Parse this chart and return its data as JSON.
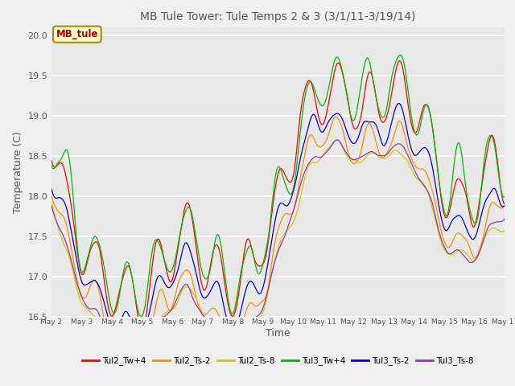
{
  "title": "MB Tule Tower: Tule Temps 2 & 3 (3/1/11-3/19/14)",
  "xlabel": "Time",
  "ylabel": "Temperature (C)",
  "ylim": [
    16.5,
    20.1
  ],
  "background_color": "#f0f0f0",
  "plot_bg_color": "#e8e8e8",
  "grid_color": "#ffffff",
  "annotation_label": "MB_tule",
  "annotation_color": "#aa0000",
  "annotation_bg": "#ffffcc",
  "annotation_border": "#aa8800",
  "series_order": [
    "Tul2_Tw+4",
    "Tul2_Ts-2",
    "Tul2_Ts-8",
    "Tul3_Tw+4",
    "Tul3_Ts-2",
    "Tul3_Ts-8"
  ],
  "series_colors": {
    "Tul2_Tw+4": "#ff0000",
    "Tul2_Ts-2": "#ff8c00",
    "Tul2_Ts-8": "#cccc00",
    "Tul3_Tw+4": "#00bb00",
    "Tul3_Ts-2": "#0000dd",
    "Tul3_Ts-8": "#9933bb"
  },
  "x_tick_labels": [
    "May 2",
    "May 3",
    "May 4",
    "May 5",
    "May 6",
    "May 7",
    "May 8",
    "May 9",
    "May 10",
    "May 11",
    "May 12",
    "May 13",
    "May 14",
    "May 15",
    "May 16",
    "May 17"
  ],
  "n_days": 16,
  "pts_per_day": 24,
  "base_trend": [
    18.7,
    17.5,
    16.9,
    16.75,
    17.4,
    17.3,
    16.85,
    17.4,
    18.55,
    19.3,
    19.2,
    19.25,
    19.1,
    18.15,
    18.0,
    18.5
  ],
  "offsets": {
    "Tul2_Tw+4": 0.0,
    "Tul2_Ts-2": -0.55,
    "Tul2_Ts-8": -0.75,
    "Tul3_Tw+4": 0.05,
    "Tul3_Ts-2": -0.35,
    "Tul3_Ts-8": -0.7
  },
  "diurnal_amp": {
    "Tul2_Tw+4": 0.38,
    "Tul2_Ts-2": 0.18,
    "Tul2_Ts-8": 0.07,
    "Tul3_Tw+4": 0.38,
    "Tul3_Ts-2": 0.18,
    "Tul3_Ts-8": 0.07
  },
  "noise_scale": {
    "Tul2_Tw+4": 0.09,
    "Tul2_Ts-2": 0.06,
    "Tul2_Ts-8": 0.04,
    "Tul3_Tw+4": 0.09,
    "Tul3_Ts-2": 0.06,
    "Tul3_Ts-8": 0.04
  }
}
